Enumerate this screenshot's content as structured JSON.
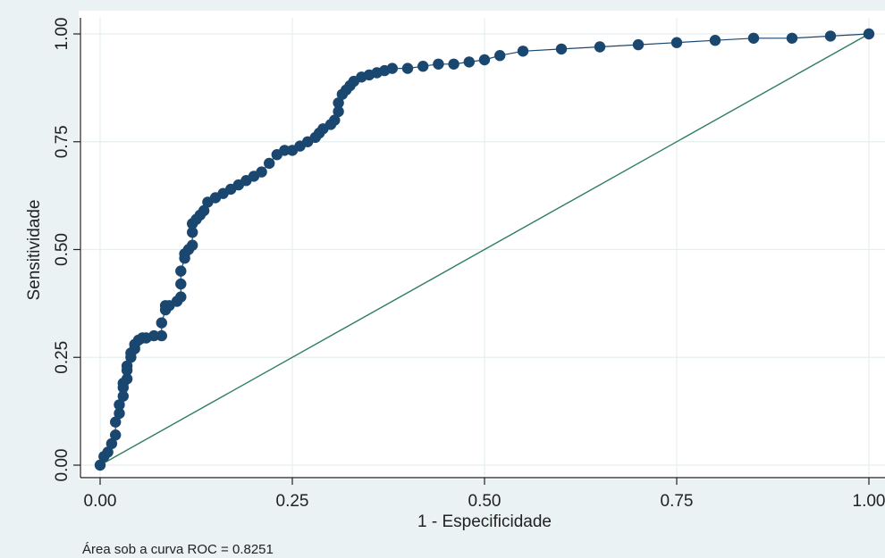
{
  "chart_data": {
    "type": "scatter",
    "title": "",
    "xlabel": "1 - Especificidade",
    "ylabel": "Sensitividade",
    "xlim": [
      0,
      1
    ],
    "ylim": [
      0,
      1
    ],
    "x_ticks": [
      "0.00",
      "0.25",
      "0.50",
      "0.75",
      "1.00"
    ],
    "y_ticks": [
      "0.00",
      "0.25",
      "0.50",
      "0.75",
      "1.00"
    ],
    "grid": true,
    "legend": "none",
    "note": "Área sob a curva ROC = 0.8251",
    "colors": {
      "panel_background": "#ffffff",
      "figure_background": "#eaf2f3",
      "grid": "#e6eef0",
      "marker": "#1a476f",
      "reference_line": "#2e7d60",
      "axis": "#222222"
    },
    "series": [
      {
        "kind": "roc_curve",
        "x": [
          0,
          0.005,
          0.01,
          0.015,
          0.02,
          0.02,
          0.025,
          0.025,
          0.03,
          0.03,
          0.03,
          0.035,
          0.035,
          0.035,
          0.04,
          0.04,
          0.045,
          0.045,
          0.05,
          0.055,
          0.06,
          0.07,
          0.08,
          0.08,
          0.085,
          0.085,
          0.09,
          0.1,
          0.105,
          0.105,
          0.105,
          0.11,
          0.11,
          0.115,
          0.12,
          0.12,
          0.12,
          0.125,
          0.13,
          0.135,
          0.14,
          0.15,
          0.16,
          0.17,
          0.18,
          0.19,
          0.2,
          0.21,
          0.22,
          0.23,
          0.24,
          0.25,
          0.26,
          0.27,
          0.28,
          0.285,
          0.29,
          0.3,
          0.305,
          0.31,
          0.31,
          0.315,
          0.32,
          0.325,
          0.33,
          0.34,
          0.35,
          0.36,
          0.37,
          0.38,
          0.4,
          0.42,
          0.44,
          0.46,
          0.48,
          0.5,
          0.52,
          0.55,
          0.6,
          0.65,
          0.7,
          0.75,
          0.8,
          0.85,
          0.9,
          0.95,
          1.0
        ],
        "y": [
          0,
          0.02,
          0.03,
          0.05,
          0.07,
          0.1,
          0.12,
          0.14,
          0.16,
          0.18,
          0.19,
          0.2,
          0.22,
          0.23,
          0.25,
          0.26,
          0.27,
          0.28,
          0.29,
          0.295,
          0.295,
          0.3,
          0.3,
          0.33,
          0.36,
          0.37,
          0.37,
          0.38,
          0.39,
          0.42,
          0.45,
          0.48,
          0.49,
          0.5,
          0.51,
          0.54,
          0.56,
          0.57,
          0.58,
          0.59,
          0.61,
          0.62,
          0.63,
          0.64,
          0.65,
          0.66,
          0.67,
          0.68,
          0.7,
          0.72,
          0.73,
          0.73,
          0.74,
          0.75,
          0.76,
          0.77,
          0.78,
          0.79,
          0.8,
          0.82,
          0.84,
          0.86,
          0.87,
          0.88,
          0.89,
          0.9,
          0.905,
          0.91,
          0.915,
          0.92,
          0.92,
          0.925,
          0.93,
          0.93,
          0.935,
          0.94,
          0.95,
          0.96,
          0.965,
          0.97,
          0.975,
          0.98,
          0.985,
          0.99,
          0.99,
          0.995,
          1.0
        ]
      },
      {
        "kind": "reference_line",
        "x": [
          0,
          1
        ],
        "y": [
          0,
          1
        ]
      }
    ]
  }
}
